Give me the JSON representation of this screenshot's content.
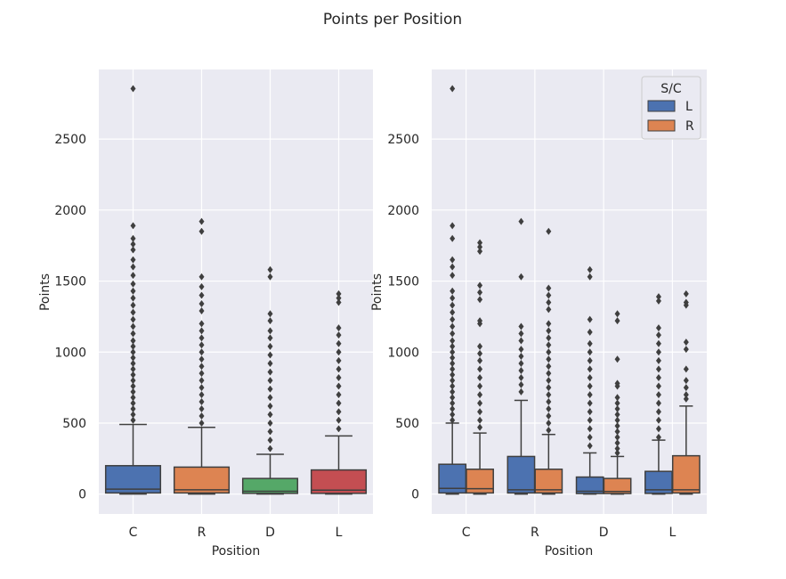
{
  "figure": {
    "title": "Points per Position"
  },
  "chart_data": [
    {
      "type": "box",
      "xlabel": "Position",
      "ylabel": "Points",
      "ylim": [
        -140,
        2990
      ],
      "yticks": [
        0,
        500,
        1000,
        1500,
        2000,
        2500
      ],
      "grid": true,
      "categories": [
        "C",
        "R",
        "D",
        "L"
      ],
      "colors": [
        "#4c72b0",
        "#dd8452",
        "#55a868",
        "#c44e52"
      ],
      "boxes": [
        {
          "category": "C",
          "whisker_low": 0,
          "q1": 8,
          "median": 35,
          "q3": 200,
          "whisker_high": 490,
          "outliers": [
            2855,
            1890,
            1800,
            1760,
            1720,
            1650,
            1600,
            1540,
            1480,
            1430,
            1380,
            1330,
            1280,
            1230,
            1180,
            1130,
            1080,
            1040,
            1000,
            960,
            920,
            880,
            840,
            800,
            760,
            720,
            680,
            640,
            600,
            560,
            520
          ]
        },
        {
          "category": "R",
          "whisker_low": 0,
          "q1": 8,
          "median": 30,
          "q3": 190,
          "whisker_high": 470,
          "outliers": [
            1920,
            1850,
            1530,
            1460,
            1400,
            1340,
            1290,
            1200,
            1150,
            1100,
            1050,
            1000,
            950,
            900,
            850,
            800,
            750,
            700,
            650,
            600,
            550,
            500
          ]
        },
        {
          "category": "D",
          "whisker_low": 0,
          "q1": 5,
          "median": 20,
          "q3": 110,
          "whisker_high": 280,
          "outliers": [
            1580,
            1530,
            1270,
            1220,
            1150,
            1100,
            1040,
            980,
            920,
            860,
            800,
            740,
            680,
            620,
            560,
            500,
            440,
            380,
            320
          ]
        },
        {
          "category": "L",
          "whisker_low": 0,
          "q1": 5,
          "median": 28,
          "q3": 170,
          "whisker_high": 410,
          "outliers": [
            1410,
            1380,
            1350,
            1170,
            1120,
            1060,
            1000,
            940,
            880,
            820,
            760,
            700,
            640,
            580,
            520,
            460
          ]
        }
      ]
    },
    {
      "type": "box",
      "xlabel": "Position",
      "ylabel": "Points",
      "ylim": [
        -140,
        2990
      ],
      "yticks": [
        0,
        500,
        1000,
        1500,
        2000,
        2500
      ],
      "grid": true,
      "categories": [
        "C",
        "R",
        "D",
        "L"
      ],
      "legend": {
        "title": "S/C",
        "placement": "top-right"
      },
      "series": [
        {
          "name": "L",
          "color": "#4c72b0",
          "boxes": [
            {
              "category": "C",
              "whisker_low": 0,
              "q1": 8,
              "median": 40,
              "q3": 210,
              "whisker_high": 500,
              "outliers": [
                2855,
                1890,
                1800,
                1650,
                1600,
                1540,
                1430,
                1380,
                1330,
                1280,
                1230,
                1180,
                1130,
                1080,
                1040,
                1000,
                960,
                920,
                880,
                840,
                800,
                760,
                720,
                680,
                640,
                600,
                560,
                520
              ]
            },
            {
              "category": "R",
              "whisker_low": 0,
              "q1": 8,
              "median": 30,
              "q3": 265,
              "whisker_high": 660,
              "outliers": [
                1920,
                1530,
                1180,
                1130,
                1080,
                1020,
                970,
                920,
                870,
                820,
                770,
                720
              ]
            },
            {
              "category": "D",
              "whisker_low": 0,
              "q1": 4,
              "median": 20,
              "q3": 120,
              "whisker_high": 290,
              "outliers": [
                1580,
                1530,
                1230,
                1140,
                1060,
                1000,
                940,
                880,
                820,
                760,
                700,
                640,
                580,
                520,
                460,
                400,
                340
              ]
            },
            {
              "category": "L",
              "whisker_low": 0,
              "q1": 5,
              "median": 30,
              "q3": 160,
              "whisker_high": 380,
              "outliers": [
                1390,
                1360,
                1170,
                1120,
                1060,
                1000,
                940,
                880,
                820,
                760,
                700,
                640,
                580,
                520,
                460,
                400
              ]
            }
          ]
        },
        {
          "name": "R",
          "color": "#dd8452",
          "boxes": [
            {
              "category": "C",
              "whisker_low": 0,
              "q1": 8,
              "median": 38,
              "q3": 175,
              "whisker_high": 430,
              "outliers": [
                1770,
                1740,
                1710,
                1470,
                1420,
                1370,
                1220,
                1200,
                1040,
                990,
                940,
                880,
                820,
                760,
                700,
                640,
                580,
                520,
                470
              ]
            },
            {
              "category": "R",
              "whisker_low": 0,
              "q1": 8,
              "median": 30,
              "q3": 175,
              "whisker_high": 420,
              "outliers": [
                1850,
                1450,
                1400,
                1350,
                1300,
                1200,
                1150,
                1100,
                1050,
                1000,
                950,
                900,
                850,
                800,
                750,
                700,
                650,
                600,
                550,
                500,
                450
              ]
            },
            {
              "category": "D",
              "whisker_low": 0,
              "q1": 4,
              "median": 18,
              "q3": 110,
              "whisker_high": 265,
              "outliers": [
                1270,
                1220,
                950,
                780,
                760,
                680,
                640,
                600,
                560,
                520,
                480,
                440,
                400,
                360,
                320,
                290
              ]
            },
            {
              "category": "L",
              "whisker_low": 0,
              "q1": 8,
              "median": 30,
              "q3": 270,
              "whisker_high": 620,
              "outliers": [
                1410,
                1350,
                1330,
                1070,
                1020,
                880,
                800,
                750,
                700,
                670
              ]
            }
          ]
        }
      ]
    }
  ]
}
